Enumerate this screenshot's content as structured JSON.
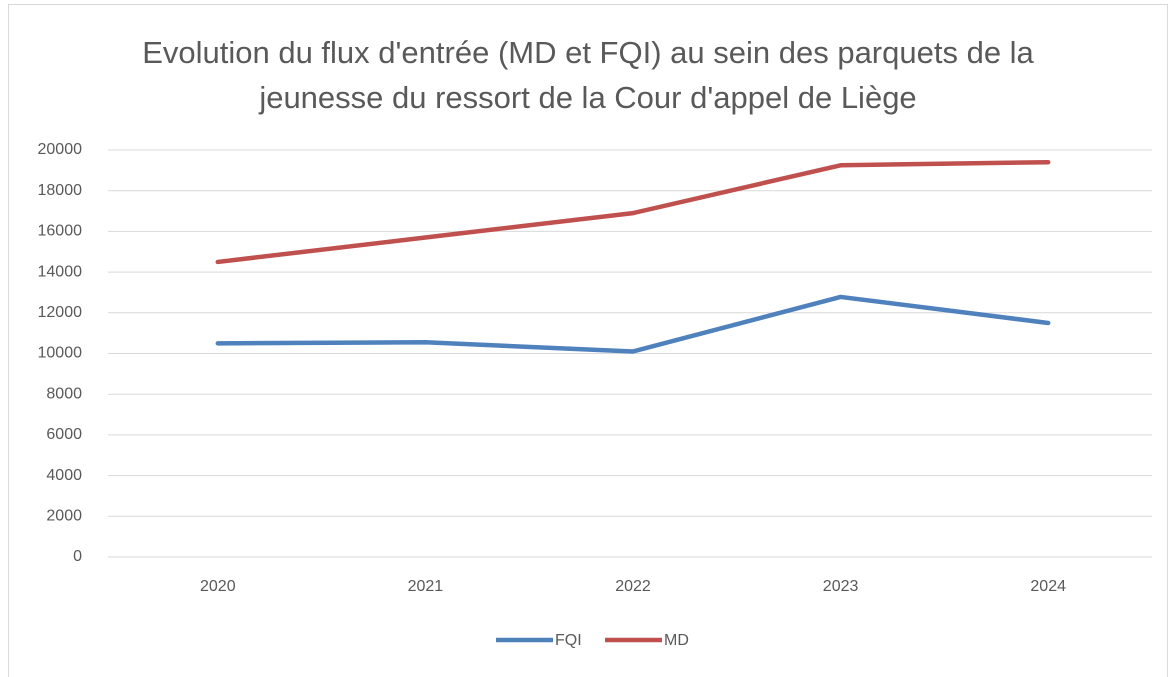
{
  "chart_data": {
    "type": "line",
    "title": "Evolution du flux d'entrée (MD et FQI) au sein des parquets de la jeunesse du ressort de la Cour d'appel de Liège",
    "categories": [
      "2020",
      "2021",
      "2022",
      "2023",
      "2024"
    ],
    "series": [
      {
        "name": "FQI",
        "color": "#4f81bd",
        "values": [
          10500,
          10550,
          10100,
          12780,
          11500
        ]
      },
      {
        "name": "MD",
        "color": "#c0504d",
        "values": [
          14500,
          15700,
          16900,
          19250,
          19400
        ]
      }
    ],
    "ylim": [
      0,
      20000
    ],
    "yticks": [
      0,
      2000,
      4000,
      6000,
      8000,
      10000,
      12000,
      14000,
      16000,
      18000,
      20000
    ],
    "grid": true,
    "legend": "bottom"
  }
}
